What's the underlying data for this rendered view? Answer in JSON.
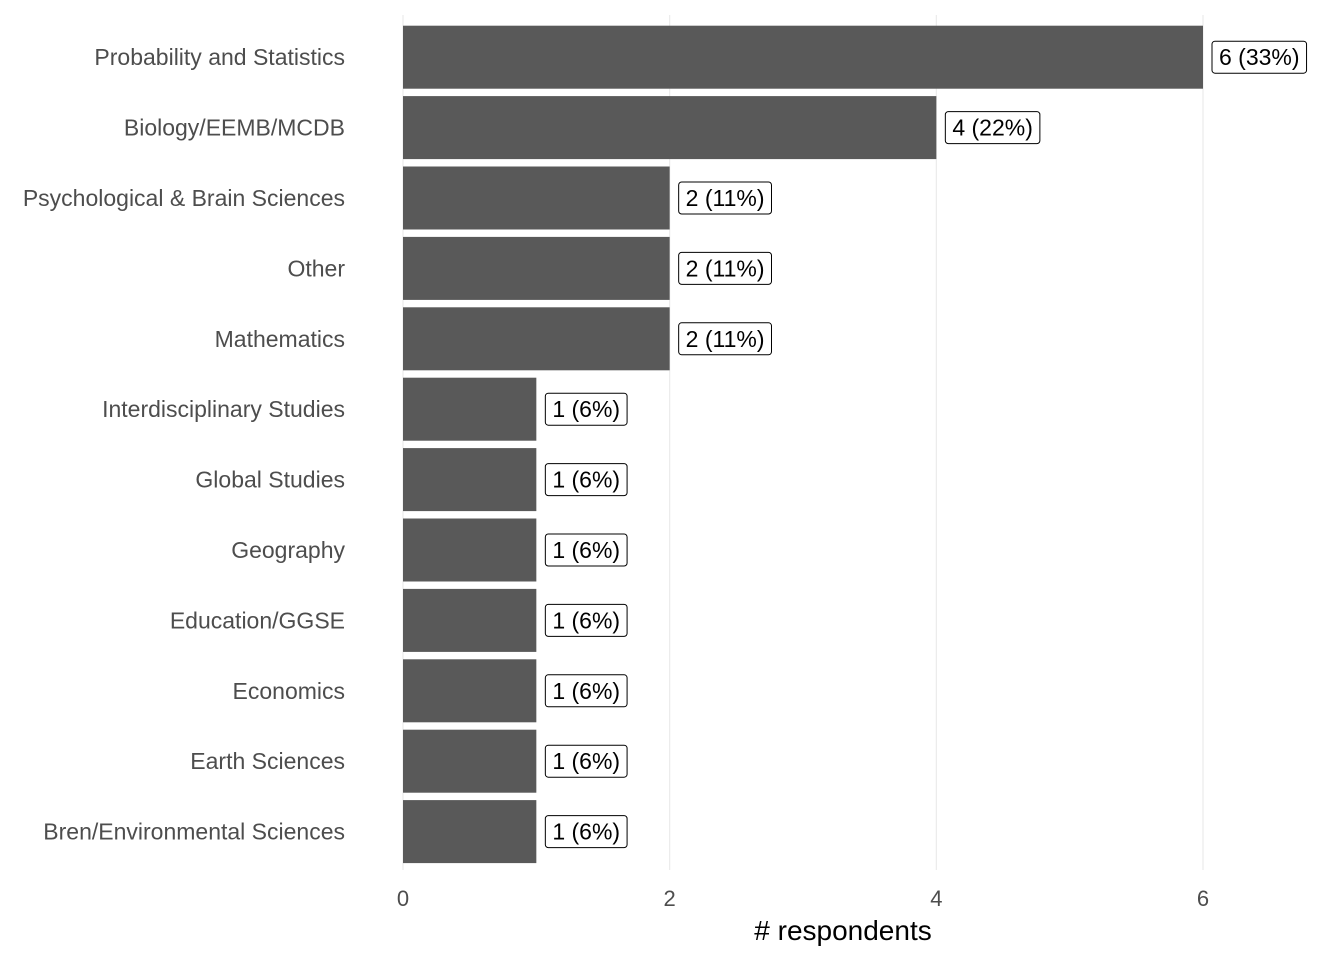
{
  "chart_data": {
    "type": "bar",
    "orientation": "horizontal",
    "categories": [
      "Probability and Statistics",
      "Biology/EEMB/MCDB",
      "Psychological & Brain Sciences",
      "Other",
      "Mathematics",
      "Interdisciplinary Studies",
      "Global Studies",
      "Geography",
      "Education/GGSE",
      "Economics",
      "Earth Sciences",
      "Bren/Environmental Sciences"
    ],
    "values": [
      6,
      4,
      2,
      2,
      2,
      1,
      1,
      1,
      1,
      1,
      1,
      1
    ],
    "data_labels": [
      "6 (33%)",
      "4 (22%)",
      "2 (11%)",
      "2 (11%)",
      "2 (11%)",
      "1 (6%)",
      "1 (6%)",
      "1 (6%)",
      "1 (6%)",
      "1 (6%)",
      "1 (6%)",
      "1 (6%)"
    ],
    "title": "",
    "xlabel": "# respondents",
    "ylabel": "",
    "xlim": [
      0,
      6.6
    ],
    "x_ticks": [
      0,
      2,
      4,
      6
    ],
    "x_tick_labels": [
      "0",
      "2",
      "4",
      "6"
    ],
    "grid": true,
    "legend": "none",
    "colors": {
      "bar": "#595959",
      "grid": "#ebebeb",
      "label_text": "#4d4d4d"
    }
  }
}
